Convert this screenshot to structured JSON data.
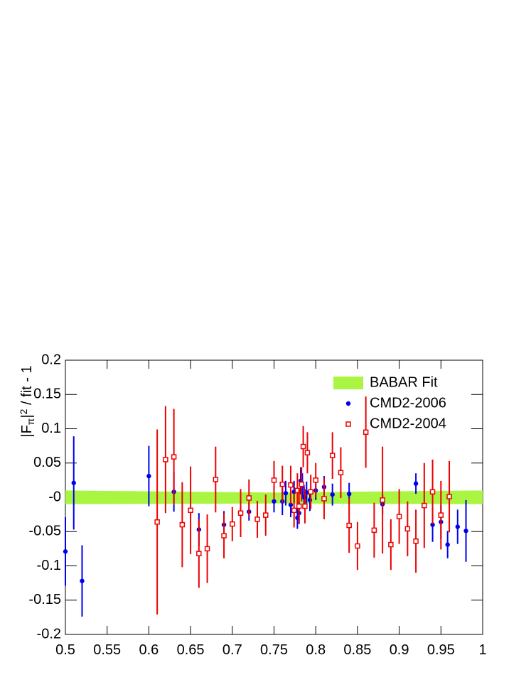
{
  "chart_data": {
    "type": "errorbar",
    "ylabel_parts": [
      "|F",
      "π",
      "|",
      "2",
      " / fit - 1"
    ],
    "xlim": [
      0.5,
      1
    ],
    "ylim": [
      -0.2,
      0.2
    ],
    "xticks": [
      0.5,
      0.55,
      0.6,
      0.65,
      0.7,
      0.75,
      0.8,
      0.85,
      0.9,
      0.95,
      1
    ],
    "yticks": [
      0.2,
      0.15,
      0.1,
      0.05,
      {
        "value": 0,
        "label": "-0"
      },
      -0.05,
      -0.1,
      -0.15,
      -0.2
    ],
    "legend": "top-right",
    "band": {
      "name": "BABAR Fit",
      "color": "#aaf542",
      "x": [
        0.5,
        0.75,
        1
      ],
      "upper": [
        0.01,
        0.007,
        0.01
      ],
      "lower": [
        -0.01,
        -0.009,
        -0.01
      ]
    },
    "series": [
      {
        "name": "CMD2-2006",
        "color": "#0000ee",
        "marker": "circle",
        "x": [
          0.5,
          0.51,
          0.52,
          0.6,
          0.63,
          0.66,
          0.69,
          0.72,
          0.75,
          0.76,
          0.764,
          0.77,
          0.774,
          0.778,
          0.78,
          0.782,
          0.784,
          0.786,
          0.789,
          0.793,
          0.8,
          0.81,
          0.82,
          0.84,
          0.88,
          0.92,
          0.94,
          0.95,
          0.958,
          0.97,
          0.98
        ],
        "values": [
          -0.079,
          0.021,
          -0.122,
          0.031,
          0.008,
          -0.047,
          -0.04,
          -0.021,
          -0.006,
          -0.006,
          0.006,
          -0.011,
          0.008,
          -0.03,
          -0.023,
          0.024,
          0.017,
          0,
          0.007,
          -0.004,
          0.01,
          0.015,
          0.004,
          0.005,
          -0.01,
          0.02,
          -0.04,
          -0.036,
          -0.069,
          -0.043,
          -0.049
        ],
        "errors": [
          0.05,
          0.068,
          0.052,
          0.044,
          0.029,
          0.024,
          0.02,
          0.013,
          0.016,
          0.02,
          0.018,
          0.018,
          0.016,
          0.016,
          0.016,
          0.02,
          0.018,
          0.016,
          0.016,
          0.016,
          0.014,
          0.016,
          0.016,
          0.016,
          0.015,
          0.015,
          0.025,
          0.025,
          0.02,
          0.025,
          0.045
        ]
      },
      {
        "name": "CMD2-2004",
        "color": "#ee0000",
        "marker": "square",
        "x": [
          0.61,
          0.62,
          0.63,
          0.64,
          0.65,
          0.66,
          0.67,
          0.68,
          0.69,
          0.7,
          0.71,
          0.72,
          0.73,
          0.74,
          0.75,
          0.76,
          0.77,
          0.774,
          0.778,
          0.78,
          0.783,
          0.785,
          0.787,
          0.79,
          0.794,
          0.8,
          0.81,
          0.82,
          0.83,
          0.84,
          0.85,
          0.86,
          0.87,
          0.88,
          0.89,
          0.9,
          0.91,
          0.92,
          0.93,
          0.94,
          0.95,
          0.96
        ],
        "values": [
          -0.036,
          0.055,
          0.059,
          -0.04,
          -0.019,
          -0.082,
          -0.075,
          0.026,
          -0.056,
          -0.039,
          -0.023,
          -0.001,
          -0.032,
          -0.026,
          0.025,
          0.019,
          0.018,
          -0.019,
          0.01,
          -0.013,
          0.019,
          0.074,
          -0.013,
          0.065,
          0.008,
          0.025,
          -0.002,
          0.061,
          0.036,
          -0.041,
          -0.071,
          0.095,
          -0.048,
          -0.004,
          -0.069,
          -0.028,
          -0.046,
          -0.064,
          -0.012,
          0.008,
          -0.026,
          0.001
        ],
        "errors": [
          0.135,
          0.078,
          0.07,
          0.062,
          0.064,
          0.05,
          0.05,
          0.048,
          0.033,
          0.025,
          0.035,
          0.027,
          0.027,
          0.03,
          0.028,
          0.027,
          0.028,
          0.025,
          0.025,
          0.025,
          0.025,
          0.03,
          0.025,
          0.03,
          0.025,
          0.025,
          0.03,
          0.034,
          0.037,
          0.04,
          0.035,
          0.052,
          0.04,
          0.078,
          0.037,
          0.04,
          0.04,
          0.046,
          0.062,
          0.047,
          0.05,
          0.052
        ]
      }
    ]
  }
}
